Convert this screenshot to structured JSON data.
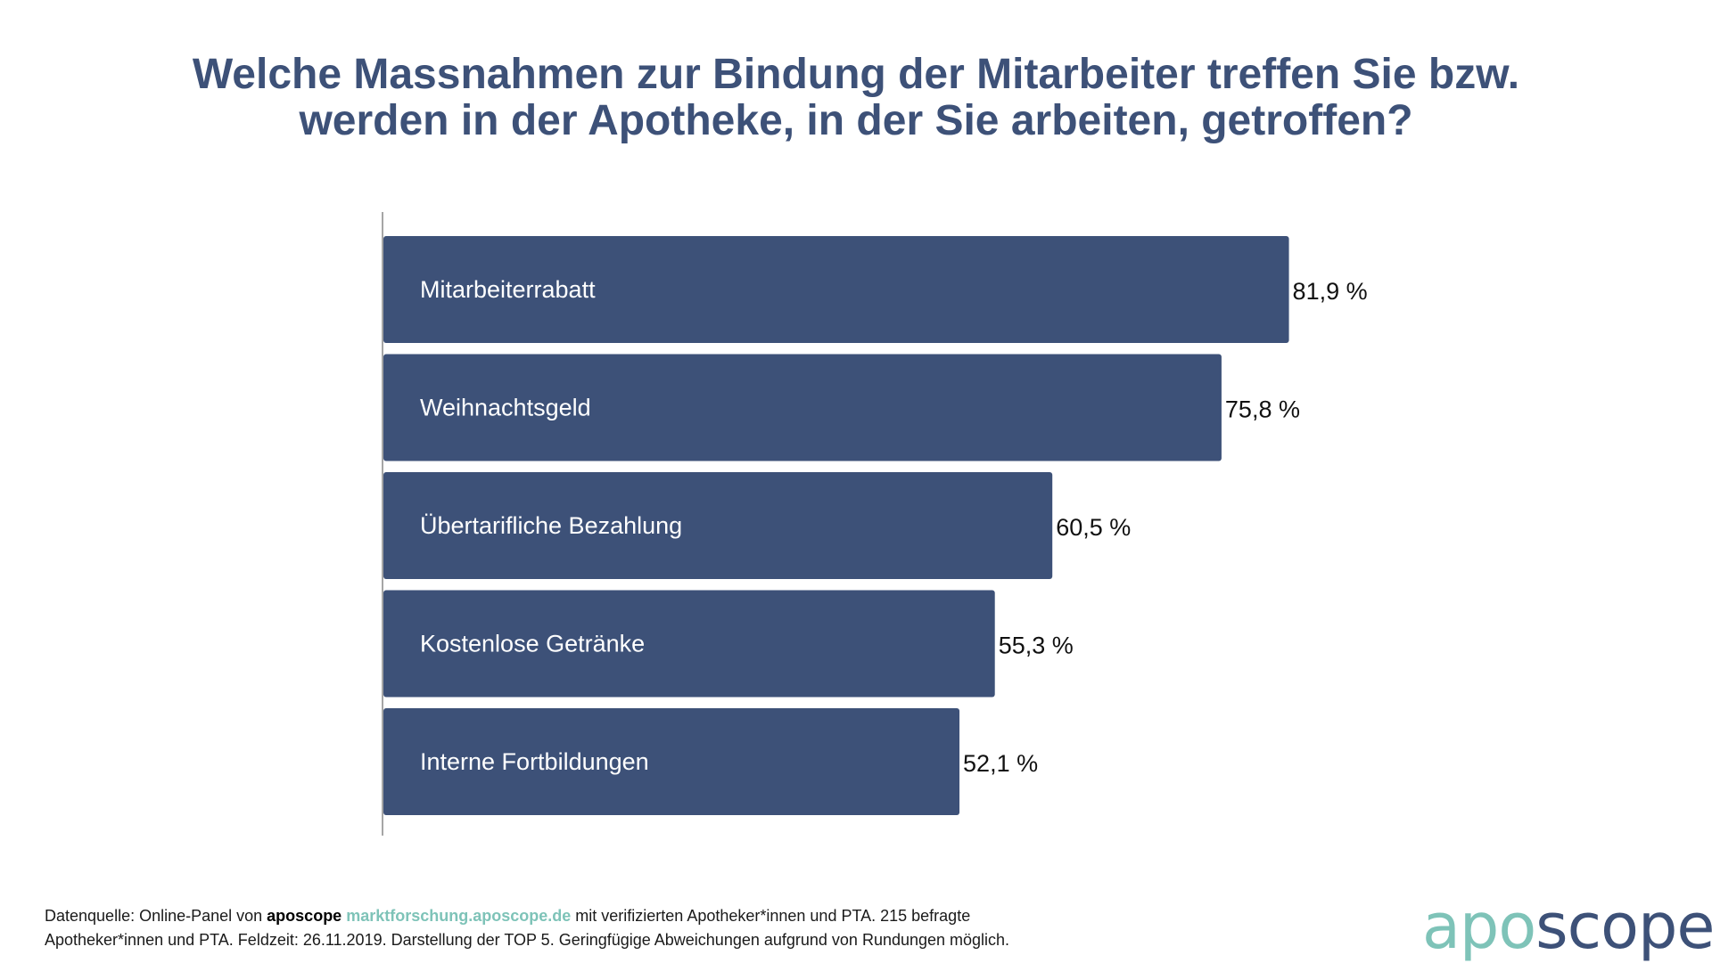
{
  "title": {
    "line1": "Welche Massnahmen zur Bindung der Mitarbeiter treffen Sie bzw.",
    "line2": "werden in der Apotheke, in der Sie arbeiten, getroffen?"
  },
  "chart_data": {
    "type": "bar",
    "orientation": "horizontal",
    "categories": [
      "Mitarbeiterrabatt",
      "Weihnachtsgeld",
      "Übertarifliche Bezahlung",
      "Kostenlose Getränke",
      "Interne Fortbildungen"
    ],
    "values": [
      81.9,
      75.8,
      60.5,
      55.3,
      52.1
    ],
    "value_labels": [
      "81,9 %",
      "75,8 %",
      "60,5 %",
      "55,3 %",
      "52,1 %"
    ],
    "unit": "%",
    "bar_color": "#3d5178",
    "xlim": [
      0,
      100
    ]
  },
  "footer": {
    "prefix": "Datenquelle: Online-Panel von ",
    "brand": "aposcope",
    "url": "marktforschung.aposcope.de",
    "line1_rest": " mit verifizierten Apotheker*innen und PTA. 215 befragte",
    "line2": "Apotheker*innen und PTA. Feldzeit: 26.11.2019. Darstellung der TOP 5. Geringfügige Abweichungen aufgrund von Rundungen möglich."
  },
  "logo": {
    "part1": "apo",
    "part2": "scope",
    "color1": "#7ec3b8",
    "color2": "#3d5178"
  }
}
